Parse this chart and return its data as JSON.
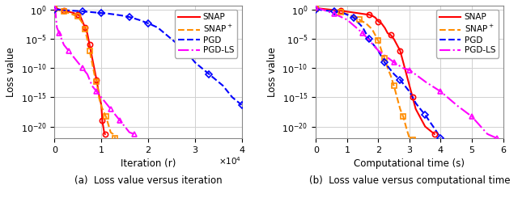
{
  "subplot_a": {
    "title": "(a)  Loss value versus iteration",
    "xlabel": "Iteration (r)",
    "ylabel": "Loss value",
    "xlim": [
      0,
      40000
    ],
    "ylim": [
      1e-22,
      5
    ],
    "xticks": [
      0,
      10000,
      20000,
      30000,
      40000
    ],
    "xtick_labels": [
      "0",
      "1",
      "2",
      "3",
      "4"
    ],
    "series": {
      "SNAP": {
        "color": "#ff0000",
        "ls": "-",
        "marker": "o",
        "x": [
          0,
          500,
          1000,
          2000,
          3000,
          4000,
          5000,
          5500,
          6000,
          6500,
          7000,
          7500,
          8000,
          8500,
          9000,
          9500,
          10000,
          10200,
          10400,
          10600,
          10800
        ],
        "y": [
          2.0,
          1.5,
          1.2,
          0.8,
          0.5,
          0.3,
          0.15,
          0.08,
          0.01,
          0.001,
          0.0001,
          1e-06,
          1e-08,
          1e-10,
          1e-12,
          3e-15,
          5e-17,
          1e-19,
          1e-20,
          1e-21,
          5e-22
        ]
      },
      "SNAP+": {
        "color": "#ff8c00",
        "ls": "--",
        "marker": "s",
        "x": [
          0,
          500,
          1000,
          2000,
          3000,
          4000,
          5000,
          5500,
          6000,
          6500,
          7000,
          7500,
          8000,
          8500,
          9000,
          9500,
          10000,
          11000,
          12000,
          12500,
          13000
        ],
        "y": [
          1.5,
          1.0,
          0.8,
          0.5,
          0.3,
          0.15,
          0.07,
          0.02,
          0.005,
          0.0005,
          1e-05,
          1e-07,
          1e-09,
          1e-11,
          5e-13,
          1e-15,
          3e-17,
          5e-19,
          1e-21,
          5e-22,
          1e-22
        ]
      },
      "PGD": {
        "color": "#0000ff",
        "ls": "--",
        "marker": "D",
        "x": [
          0,
          2000,
          4000,
          6000,
          8000,
          10000,
          12000,
          14000,
          16000,
          18000,
          20000,
          22000,
          25000,
          28000,
          30000,
          33000,
          36000,
          38000,
          40000
        ],
        "y": [
          1.2,
          0.9,
          0.7,
          0.55,
          0.4,
          0.3,
          0.2,
          0.12,
          0.06,
          0.02,
          0.005,
          0.001,
          1e-05,
          1e-07,
          1e-09,
          1e-11,
          1e-13,
          1e-15,
          5e-17
        ]
      },
      "PGD-LS": {
        "color": "#ff00ff",
        "ls": "-.",
        "marker": "^",
        "x": [
          0,
          200,
          500,
          1000,
          2000,
          3000,
          4000,
          5000,
          6000,
          7000,
          8000,
          9000,
          10000,
          11000,
          12000,
          13000,
          14000,
          15000,
          16000,
          17000
        ],
        "y": [
          2.5,
          0.5,
          0.001,
          0.0001,
          1e-06,
          1e-07,
          1e-08,
          1e-09,
          1e-10,
          1e-11,
          1e-13,
          1e-14,
          1e-15,
          1e-16,
          1e-17,
          1e-18,
          1e-19,
          1e-20,
          1e-21,
          5e-22
        ]
      }
    }
  },
  "subplot_b": {
    "title": "(b)  Loss value versus computational time",
    "xlabel": "Computational time (s)",
    "ylabel": "Loss value",
    "xlim": [
      0,
      6
    ],
    "ylim": [
      1e-22,
      5
    ],
    "xticks": [
      0,
      1,
      2,
      3,
      4,
      5,
      6
    ],
    "series": {
      "SNAP": {
        "color": "#ff0000",
        "ls": "-",
        "marker": "o",
        "x": [
          0,
          0.2,
          0.5,
          0.8,
          1.0,
          1.3,
          1.5,
          1.7,
          1.8,
          1.9,
          2.0,
          2.1,
          2.2,
          2.3,
          2.4,
          2.5,
          2.6,
          2.7,
          2.8,
          2.9,
          3.0,
          3.1,
          3.2,
          3.5,
          3.8
        ],
        "y": [
          2.0,
          1.5,
          1.0,
          0.7,
          0.5,
          0.3,
          0.2,
          0.15,
          0.1,
          0.05,
          0.01,
          0.005,
          0.001,
          0.0001,
          5e-05,
          1e-05,
          1e-06,
          1e-07,
          1e-09,
          1e-11,
          1e-13,
          1e-15,
          1e-17,
          1e-20,
          5e-22
        ]
      },
      "SNAP+": {
        "color": "#ff8c00",
        "ls": "--",
        "marker": "s",
        "x": [
          0,
          0.2,
          0.5,
          0.8,
          1.0,
          1.2,
          1.4,
          1.6,
          1.8,
          2.0,
          2.1,
          2.2,
          2.3,
          2.4,
          2.5,
          2.6,
          2.7,
          2.8,
          2.9,
          3.0,
          3.1
        ],
        "y": [
          1.5,
          1.0,
          0.7,
          0.4,
          0.2,
          0.08,
          0.02,
          0.005,
          0.0005,
          5e-06,
          1e-07,
          5e-09,
          1e-10,
          5e-12,
          1e-13,
          1e-15,
          1e-17,
          5e-19,
          5e-21,
          1e-22,
          5e-23
        ]
      },
      "PGD": {
        "color": "#0000ff",
        "ls": "--",
        "marker": "D",
        "x": [
          0,
          0.3,
          0.6,
          0.9,
          1.0,
          1.2,
          1.5,
          1.7,
          2.0,
          2.2,
          2.5,
          2.7,
          3.0,
          3.2,
          3.5,
          3.8,
          4.0
        ],
        "y": [
          1.2,
          0.8,
          0.5,
          0.25,
          0.15,
          0.05,
          0.001,
          1e-05,
          1e-07,
          1e-09,
          1e-11,
          1e-12,
          1e-14,
          1e-16,
          1e-18,
          5e-21,
          1e-22
        ]
      },
      "PGD-LS": {
        "color": "#ff00ff",
        "ls": "-.",
        "marker": "^",
        "x": [
          0,
          0.3,
          0.6,
          1.0,
          1.5,
          2.0,
          2.5,
          2.8,
          3.0,
          3.5,
          4.0,
          4.5,
          5.0,
          5.5,
          5.8
        ],
        "y": [
          2.5,
          0.8,
          0.2,
          0.02,
          0.0001,
          1e-07,
          1e-09,
          1e-10,
          5e-11,
          5e-13,
          1e-14,
          5e-17,
          5e-19,
          5e-22,
          1e-22
        ]
      }
    }
  },
  "grid_color": "#d0d0d0",
  "background_color": "#ffffff"
}
